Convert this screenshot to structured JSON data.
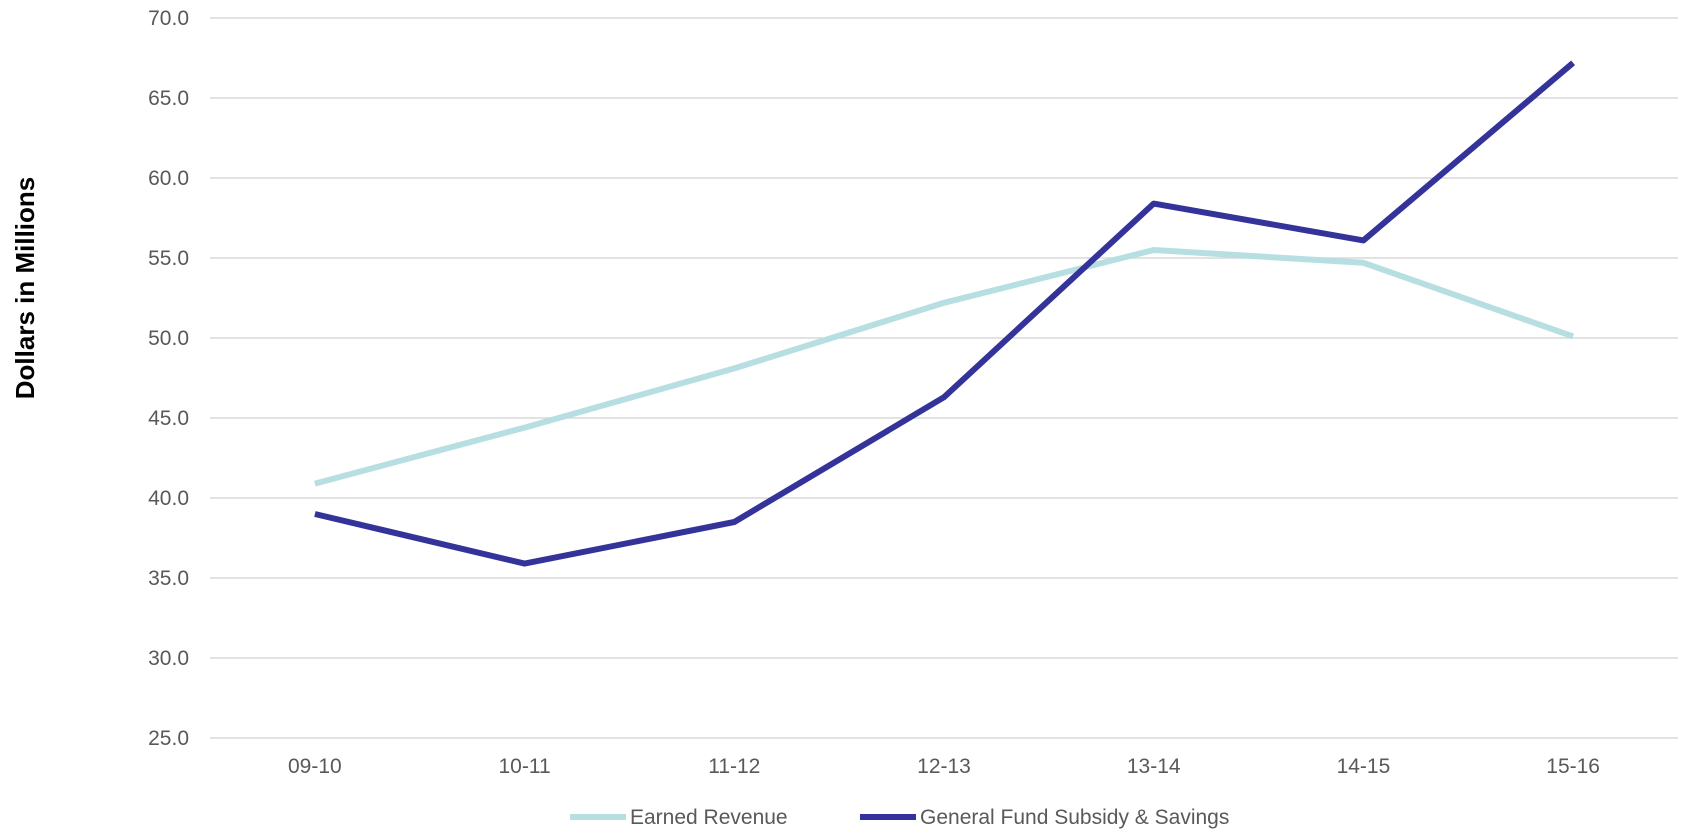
{
  "chart_data": {
    "type": "line",
    "title": "",
    "xlabel": "",
    "ylabel": "Dollars in Millions",
    "categories": [
      "09-10",
      "10-11",
      "11-12",
      "12-13",
      "13-14",
      "14-15",
      "15-16"
    ],
    "ylim": [
      25.0,
      70.0
    ],
    "ytick_step": 5,
    "ytick_labels": [
      "25.0",
      "30.0",
      "35.0",
      "40.0",
      "45.0",
      "50.0",
      "55.0",
      "60.0",
      "65.0",
      "70.0"
    ],
    "grid": "horizontal",
    "legend_position": "bottom",
    "series": [
      {
        "name": "Earned Revenue",
        "color": "#b7dfe2",
        "values": [
          40.9,
          44.4,
          48.1,
          52.2,
          55.5,
          54.7,
          50.1
        ]
      },
      {
        "name": "General Fund Subsidy & Savings",
        "color": "#333399",
        "values": [
          39.0,
          35.9,
          38.5,
          46.3,
          58.4,
          56.1,
          67.2
        ]
      }
    ]
  }
}
